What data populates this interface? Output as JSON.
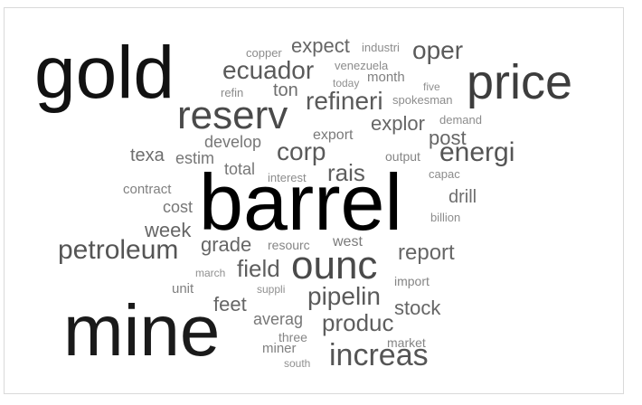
{
  "colors": {
    "level1": "#111111",
    "level2": "#3a3a3a",
    "level3": "#555555",
    "level4": "#6e6e6e",
    "level5": "#8c8c8c"
  },
  "words": [
    {
      "text": "barrel"
    },
    {
      "text": "gold"
    },
    {
      "text": "mine"
    },
    {
      "text": "price"
    },
    {
      "text": "reserv"
    },
    {
      "text": "ounc"
    },
    {
      "text": "increas"
    },
    {
      "text": "petroleum"
    },
    {
      "text": "energi"
    },
    {
      "text": "pipelin"
    },
    {
      "text": "refineri"
    },
    {
      "text": "ecuador"
    },
    {
      "text": "corp"
    },
    {
      "text": "oper"
    },
    {
      "text": "produc"
    },
    {
      "text": "field"
    },
    {
      "text": "report"
    },
    {
      "text": "rais"
    },
    {
      "text": "expect"
    },
    {
      "text": "grade"
    },
    {
      "text": "explor"
    },
    {
      "text": "week"
    },
    {
      "text": "post"
    },
    {
      "text": "stock"
    },
    {
      "text": "feet"
    },
    {
      "text": "ton"
    },
    {
      "text": "drill"
    },
    {
      "text": "develop"
    },
    {
      "text": "averag"
    },
    {
      "text": "texa"
    },
    {
      "text": "estim"
    },
    {
      "text": "total"
    },
    {
      "text": "cost"
    },
    {
      "text": "west"
    },
    {
      "text": "export"
    },
    {
      "text": "contract"
    },
    {
      "text": "miner"
    },
    {
      "text": "month"
    },
    {
      "text": "unit"
    },
    {
      "text": "three"
    },
    {
      "text": "import"
    },
    {
      "text": "resourc"
    },
    {
      "text": "market"
    },
    {
      "text": "output"
    },
    {
      "text": "copper"
    },
    {
      "text": "industri"
    },
    {
      "text": "venezuela"
    },
    {
      "text": "spokesman"
    },
    {
      "text": "demand"
    },
    {
      "text": "interest"
    },
    {
      "text": "capac"
    },
    {
      "text": "billion"
    },
    {
      "text": "refin"
    },
    {
      "text": "today"
    },
    {
      "text": "five"
    },
    {
      "text": "march"
    },
    {
      "text": "suppli"
    },
    {
      "text": "south"
    }
  ]
}
